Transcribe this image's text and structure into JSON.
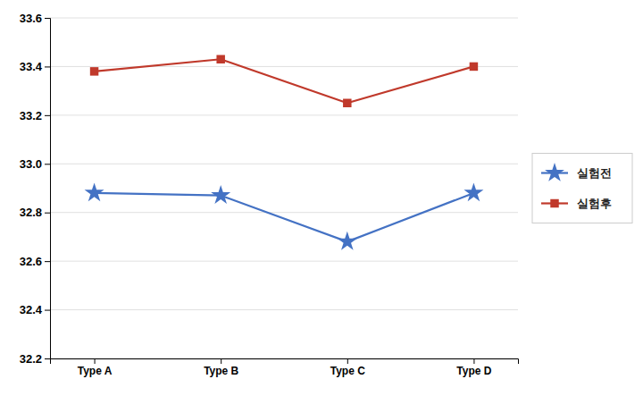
{
  "chart_data": {
    "type": "line",
    "categories": [
      "Type A",
      "Type B",
      "Type C",
      "Type D"
    ],
    "series": [
      {
        "name": "실험전",
        "color": "#4472C4",
        "marker": "star",
        "values": [
          32.88,
          32.87,
          32.68,
          32.88
        ]
      },
      {
        "name": "실험후",
        "color": "#C0392B",
        "marker": "square",
        "values": [
          33.38,
          33.43,
          33.25,
          33.4
        ]
      }
    ],
    "ylim": [
      32.2,
      33.6
    ],
    "yticks": [
      32.2,
      32.4,
      32.6,
      32.8,
      {
        "value": 33.0,
        "label": "33.0"
      },
      33.2,
      33.4,
      33.6
    ],
    "grid": true,
    "legend": "right"
  }
}
